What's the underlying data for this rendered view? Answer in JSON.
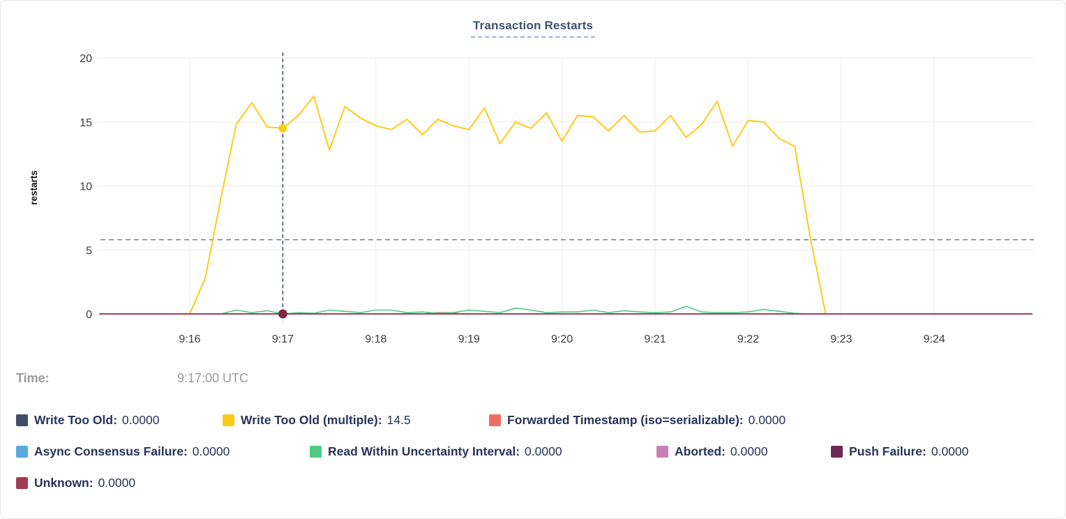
{
  "title": "Transaction Restarts",
  "tooltip": {
    "time_label": "Time:",
    "time_value": "9:17:00 UTC"
  },
  "legend": {
    "items": [
      {
        "label": "Write Too Old:",
        "value": "0.0000",
        "color": "#3f4e6a"
      },
      {
        "label": "Write Too Old (multiple):",
        "value": "14.5",
        "color": "#fecb17"
      },
      {
        "label": "Forwarded Timestamp (iso=serializable):",
        "value": "0.0000",
        "color": "#ee6e61"
      },
      {
        "label": "Async Consensus Failure:",
        "value": "0.0000",
        "color": "#5aa8dd"
      },
      {
        "label": "Read Within Uncertainty Interval:",
        "value": "0.0000",
        "color": "#4fca85"
      },
      {
        "label": "Aborted:",
        "value": "0.0000",
        "color": "#c97fb6"
      },
      {
        "label": "Push Failure:",
        "value": "0.0000",
        "color": "#6d2a56"
      },
      {
        "label": "Unknown:",
        "value": "0.0000",
        "color": "#a23a52"
      }
    ]
  },
  "chart_data": {
    "type": "line",
    "title": "Transaction Restarts",
    "xlabel": "",
    "ylabel": "restarts",
    "x_ticks": [
      "9:16",
      "9:17",
      "9:18",
      "9:19",
      "9:20",
      "9:21",
      "9:22",
      "9:23",
      "9:24"
    ],
    "y_ticks": [
      0,
      5,
      10,
      15,
      20
    ],
    "ylim": [
      0,
      20
    ],
    "grid": true,
    "series": [
      {
        "name": "Write Too Old",
        "color": "#3f4e6a",
        "points": [
          [
            "9:15:02",
            0
          ],
          [
            "9:25:03",
            0
          ]
        ]
      },
      {
        "name": "Write Too Old (multiple)",
        "color": "#fecb17",
        "points": [
          [
            "9:16:00",
            0
          ],
          [
            "9:16:10",
            2.8
          ],
          [
            "9:16:20",
            9
          ],
          [
            "9:16:30",
            14.8
          ],
          [
            "9:16:40",
            16.5
          ],
          [
            "9:16:50",
            14.6
          ],
          [
            "9:17:00",
            14.5
          ],
          [
            "9:17:10",
            15.5
          ],
          [
            "9:17:20",
            17
          ],
          [
            "9:17:30",
            12.8
          ],
          [
            "9:17:40",
            16.2
          ],
          [
            "9:17:50",
            15.3
          ],
          [
            "9:18:00",
            14.7
          ],
          [
            "9:18:10",
            14.4
          ],
          [
            "9:18:20",
            15.2
          ],
          [
            "9:18:30",
            14
          ],
          [
            "9:18:40",
            15.2
          ],
          [
            "9:18:50",
            14.7
          ],
          [
            "9:19:00",
            14.4
          ],
          [
            "9:19:10",
            16.1
          ],
          [
            "9:19:20",
            13.3
          ],
          [
            "9:19:30",
            15
          ],
          [
            "9:19:40",
            14.5
          ],
          [
            "9:19:50",
            15.7
          ],
          [
            "9:20:00",
            13.5
          ],
          [
            "9:20:10",
            15.5
          ],
          [
            "9:20:20",
            15.4
          ],
          [
            "9:20:30",
            14.3
          ],
          [
            "9:20:40",
            15.5
          ],
          [
            "9:20:50",
            14.2
          ],
          [
            "9:21:00",
            14.3
          ],
          [
            "9:21:10",
            15.5
          ],
          [
            "9:21:20",
            13.8
          ],
          [
            "9:21:30",
            14.8
          ],
          [
            "9:21:40",
            16.6
          ],
          [
            "9:21:50",
            13.1
          ],
          [
            "9:22:00",
            15.1
          ],
          [
            "9:22:10",
            15
          ],
          [
            "9:22:20",
            13.7
          ],
          [
            "9:22:30",
            13.1
          ],
          [
            "9:22:40",
            6
          ],
          [
            "9:22:50",
            0
          ]
        ]
      },
      {
        "name": "Forwarded Timestamp (iso=serializable)",
        "color": "#ee6e61",
        "points": [
          [
            "9:15:02",
            0
          ],
          [
            "9:18:30",
            0
          ],
          [
            "9:18:40",
            0.1
          ],
          [
            "9:18:50",
            0.1
          ],
          [
            "9:18:55",
            0
          ],
          [
            "9:25:03",
            0
          ]
        ]
      },
      {
        "name": "Async Consensus Failure",
        "color": "#5aa8dd",
        "points": [
          [
            "9:15:02",
            0
          ],
          [
            "9:25:03",
            0
          ]
        ]
      },
      {
        "name": "Read Within Uncertainty Interval",
        "color": "#4fca85",
        "points": [
          [
            "9:16:20",
            0
          ],
          [
            "9:16:30",
            0.3
          ],
          [
            "9:16:40",
            0.1
          ],
          [
            "9:16:50",
            0.25
          ],
          [
            "9:17:00",
            0
          ],
          [
            "9:17:10",
            0.1
          ],
          [
            "9:17:20",
            0.05
          ],
          [
            "9:17:30",
            0.3
          ],
          [
            "9:17:40",
            0.2
          ],
          [
            "9:17:50",
            0.1
          ],
          [
            "9:18:00",
            0.3
          ],
          [
            "9:18:10",
            0.3
          ],
          [
            "9:18:20",
            0.1
          ],
          [
            "9:18:30",
            0.15
          ],
          [
            "9:18:40",
            0.05
          ],
          [
            "9:18:50",
            0.1
          ],
          [
            "9:19:00",
            0.3
          ],
          [
            "9:19:10",
            0.2
          ],
          [
            "9:19:20",
            0.1
          ],
          [
            "9:19:30",
            0.45
          ],
          [
            "9:19:40",
            0.3
          ],
          [
            "9:19:50",
            0.1
          ],
          [
            "9:20:00",
            0.15
          ],
          [
            "9:20:10",
            0.15
          ],
          [
            "9:20:20",
            0.3
          ],
          [
            "9:20:30",
            0.1
          ],
          [
            "9:20:40",
            0.25
          ],
          [
            "9:20:50",
            0.15
          ],
          [
            "9:21:00",
            0.1
          ],
          [
            "9:21:10",
            0.15
          ],
          [
            "9:21:20",
            0.6
          ],
          [
            "9:21:30",
            0.15
          ],
          [
            "9:21:40",
            0.1
          ],
          [
            "9:21:50",
            0.1
          ],
          [
            "9:22:00",
            0.15
          ],
          [
            "9:22:10",
            0.35
          ],
          [
            "9:22:20",
            0.2
          ],
          [
            "9:22:30",
            0.05
          ],
          [
            "9:22:40",
            0
          ],
          [
            "9:22:50",
            0
          ]
        ]
      },
      {
        "name": "Aborted",
        "color": "#c97fb6",
        "points": [
          [
            "9:15:02",
            0
          ],
          [
            "9:25:03",
            0
          ]
        ]
      },
      {
        "name": "Push Failure",
        "color": "#6d2a56",
        "points": [
          [
            "9:15:02",
            0
          ],
          [
            "9:25:03",
            0
          ]
        ]
      },
      {
        "name": "Unknown",
        "color": "#a23a52",
        "points": [
          [
            "9:15:02",
            0
          ],
          [
            "9:25:03",
            0
          ]
        ]
      }
    ],
    "hover": {
      "x_time": "9:17:00",
      "time_display": "9:17:00 UTC",
      "h_line_value": 5.8,
      "markers": [
        {
          "series": "Write Too Old (multiple)",
          "value": 14.5
        },
        {
          "series": "Unknown",
          "value": 0
        }
      ]
    }
  }
}
